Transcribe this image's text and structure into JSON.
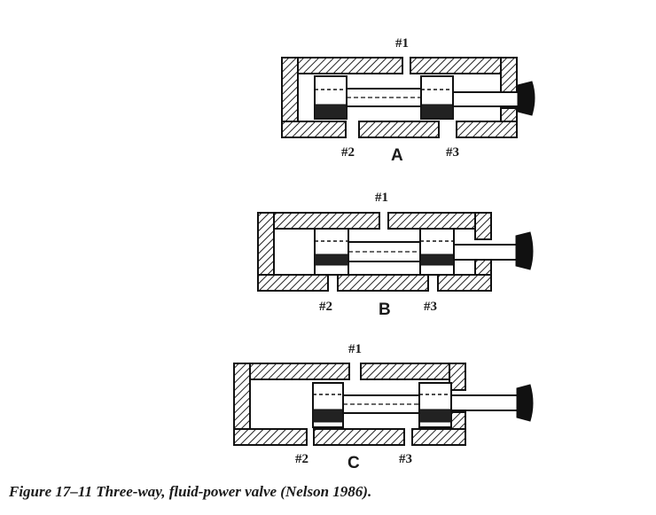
{
  "figure": {
    "caption": "Figure 17–11  Three-way, fluid-power valve (Nelson 1986).",
    "valves": [
      {
        "position_label": "A",
        "port_top": "#1",
        "port_left": "#2",
        "port_right": "#3"
      },
      {
        "position_label": "B",
        "port_top": "#1",
        "port_left": "#2",
        "port_right": "#3"
      },
      {
        "position_label": "C",
        "port_top": "#1",
        "port_left": "#2",
        "port_right": "#3"
      }
    ]
  }
}
